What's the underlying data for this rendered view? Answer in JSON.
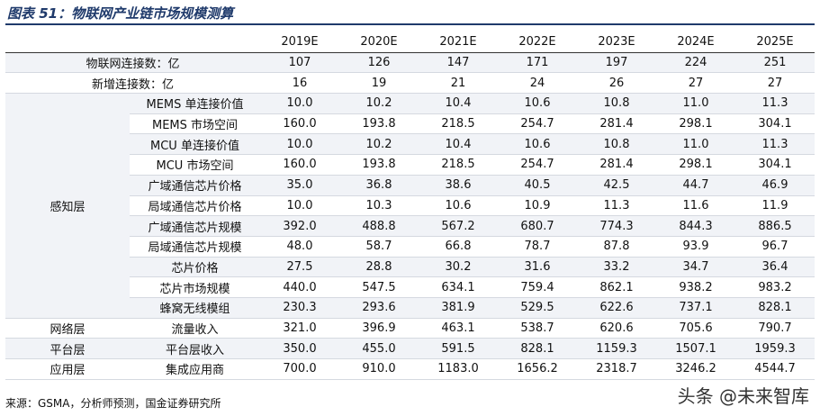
{
  "header": {
    "title": "图表 51：物联网产业链市场规模测算"
  },
  "table": {
    "columns": [
      "2019E",
      "2020E",
      "2021E",
      "2022E",
      "2023E",
      "2024E",
      "2025E"
    ],
    "sections": [
      {
        "rows": [
          {
            "label": "物联网连接数：亿",
            "values": [
              "107",
              "126",
              "147",
              "171",
              "197",
              "224",
              "251"
            ]
          },
          {
            "label": "新增连接数：亿",
            "values": [
              "16",
              "19",
              "21",
              "24",
              "26",
              "27",
              "27"
            ]
          }
        ]
      },
      {
        "group": "感知层",
        "rows": [
          {
            "label": "MEMS 单连接价值",
            "values": [
              "10.0",
              "10.2",
              "10.4",
              "10.6",
              "10.8",
              "11.0",
              "11.3"
            ]
          },
          {
            "label": "MEMS 市场空间",
            "values": [
              "160.0",
              "193.8",
              "218.5",
              "254.7",
              "281.4",
              "298.1",
              "304.1"
            ]
          },
          {
            "label": "MCU 单连接价值",
            "values": [
              "10.0",
              "10.2",
              "10.4",
              "10.6",
              "10.8",
              "11.0",
              "11.3"
            ]
          },
          {
            "label": "MCU 市场空间",
            "values": [
              "160.0",
              "193.8",
              "218.5",
              "254.7",
              "281.4",
              "298.1",
              "304.1"
            ]
          },
          {
            "label": "广域通信芯片价格",
            "values": [
              "35.0",
              "36.8",
              "38.6",
              "40.5",
              "42.5",
              "44.7",
              "46.9"
            ]
          },
          {
            "label": "局域通信芯片价格",
            "values": [
              "10.0",
              "10.3",
              "10.6",
              "10.9",
              "11.3",
              "11.6",
              "11.9"
            ]
          },
          {
            "label": "广域通信芯片规模",
            "values": [
              "392.0",
              "488.8",
              "567.2",
              "680.7",
              "774.3",
              "844.3",
              "886.5"
            ]
          },
          {
            "label": "局域通信芯片规模",
            "values": [
              "48.0",
              "58.7",
              "66.8",
              "78.7",
              "87.8",
              "93.9",
              "96.7"
            ]
          },
          {
            "label": "芯片价格",
            "values": [
              "27.5",
              "28.8",
              "30.2",
              "31.6",
              "33.2",
              "34.7",
              "36.4"
            ]
          },
          {
            "label": "芯片市场规模",
            "values": [
              "440.0",
              "547.5",
              "634.1",
              "759.4",
              "862.1",
              "938.2",
              "983.2"
            ]
          },
          {
            "label": "蜂窝无线模组",
            "values": [
              "230.3",
              "293.6",
              "381.9",
              "529.5",
              "622.6",
              "737.1",
              "828.1"
            ]
          }
        ]
      },
      {
        "group": "网络层",
        "rows": [
          {
            "label": "流量收入",
            "values": [
              "321.0",
              "396.9",
              "463.1",
              "538.7",
              "620.6",
              "705.6",
              "790.7"
            ]
          }
        ]
      },
      {
        "group": "平台层",
        "rows": [
          {
            "label": "平台层收入",
            "values": [
              "350.0",
              "455.0",
              "591.5",
              "828.1",
              "1159.3",
              "1507.1",
              "1959.3"
            ]
          }
        ]
      },
      {
        "group": "应用层",
        "rows": [
          {
            "label": "集成应用商",
            "values": [
              "700.0",
              "910.0",
              "1183.0",
              "1656.2",
              "2318.7",
              "3246.2",
              "4544.7"
            ]
          }
        ]
      }
    ]
  },
  "source": "来源：GSMA，分析师预测，国金证券研究所",
  "watermark": "头条 @未来智库"
}
